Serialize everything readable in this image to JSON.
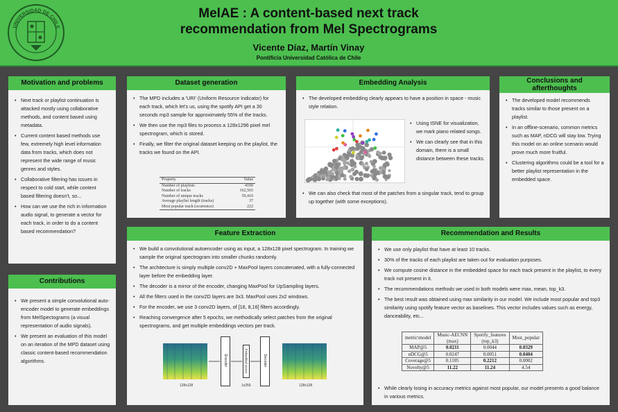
{
  "header": {
    "title_line1": "MelAE : A content-based next track",
    "title_line2": "recommendation from Mel Spectrograms",
    "authors": "Vicente Díaz, Martín Vinay",
    "affiliation": "Pontificia Universidad Católica de Chile",
    "logo_text": "UNIVERSIDAD DE CHILE"
  },
  "motivation": {
    "title": "Motivation and problems",
    "items": [
      " Next track or playlist continuation is attacked mostly using collaborative methods, and content based using metadata.",
      "Current content based methods use few,  extremely high level information data from tracks, which does not represent the wide range of music genres and styles.",
      "Collaborative filtering has issues in respect to cold start, while content based filtering doesn't, so...",
      "How can we use the rich in information audio signal, to generate a vector for each track, in order to do a content based recommendation?"
    ]
  },
  "contributions": {
    "title": "Contributions",
    "items": [
      "We present a simple convolutional auto-encoder model to generate embeddings from MelSpectograms (a visual representation of audio signals).",
      "We present an evaluation of this model on an iteration of the MPD dataset using classic content-based recommendation algorithms."
    ]
  },
  "dataset": {
    "title": "Dataset generation",
    "items": [
      "The MPD includes a 'URI' (Uniform Resource Indicator) for each track, which let's us, using the spotify API get a 30 seconds mp3 sample for approximately 55% of the tracks.",
      "We then use the mp3 files to process a 128x1296 pixel mel spectrogram, which is stored.",
      "Finally, we filter the original dataset keeping on the playlist, the tracks we found on the API."
    ],
    "table": {
      "headers": [
        "Property",
        "Value"
      ],
      "rows": [
        [
          "Number of playlists",
          "4100"
        ],
        [
          "Number of tracks",
          "162,565"
        ],
        [
          "Number of unique tracks",
          "59,410"
        ],
        [
          "Average playlist length (tracks)",
          "37"
        ],
        [
          "Most popular track (ocurrence)",
          "222"
        ]
      ]
    }
  },
  "embedding": {
    "title": "Embedding Analysis",
    "intro": "The developed embedding clearly appears to have a position in space - music style relation.",
    "side_items": [
      "Using tSNE for visualization, we mark piano related songs.",
      "We can clearly see that in this domain, there is a small distance between these tracks."
    ],
    "bottom": "We can also check that most of the patches from a singular track, tend to group up together (with some exceptions)."
  },
  "conclusions": {
    "title_line1": "Conclusions and",
    "title_line2": "afterthoughts",
    "items": [
      "The developed model recommends tracks similar to those present on a playlist.",
      "In an offline-scenario, common metrics such as MAP, nDCG will stay low. Trying this model on an online scenario would prove much more fruitful.",
      "Clustering algorithms could be a tool for a better playlist representation in the embedded space."
    ]
  },
  "feature": {
    "title": "Feature Extraction",
    "items": [
      "We build a convolutional autoencoder using as input, a 128x128 pixel spectrogram. In training we sample the original spectrogram into smaller chunks randomly.",
      "The architecture is simply multiple conv2D + MaxPool layers concatenated, with a fully-connected layer before the embedding layer.",
      "The decoder is a mirror of the encoder, changing MaxPool for UpSampling layers.",
      "All the filters used in the conv2D layers are 3x3. MaxPool uses 2x2 windows.",
      "For the encoder, we use 3 conv2D layers, of [16, 8,16] filters accordingly.",
      "Reaching convergence after 5 epochs, we methodically select patches from the original spectrograms, and get multiple embeddings vectors per track."
    ],
    "diagram": {
      "input_label": "128x128",
      "encoder": "Encoder",
      "embedded": "Embedded Vector",
      "embedded_dim": "1x256",
      "decoder": "Decoder",
      "output_label": "128x128"
    }
  },
  "results": {
    "title": "Recommendation and Results",
    "items": [
      "We use only playlist that have at least 10 tracks.",
      "30% of the tracks of each playlist are taken out for evaluation purposes.",
      "We compute cosine distance in the embedded space for each track present in the playlist, to every track not present in it.",
      "The recommendations methods we used in both models were max, mean, top_k3.",
      "The best result was obtained using max similarity in our model. We include most popular and top3 similarity using spotify feature vector as baselines. This vector includes values such as energy, danceability, etc..."
    ],
    "table": {
      "h0": "metric\\model",
      "h1a": "Music-AECNN",
      "h1b": "(max)",
      "h2a": "Spotify_features",
      "h2b": "(top_k3)",
      "h3": "Most_popular",
      "rows": [
        [
          "MAP@5",
          "0.0211",
          "0.0044",
          "0.0329"
        ],
        [
          "nDCG@5",
          "0.0247",
          "0.0051",
          "0.0404"
        ],
        [
          "Coverage@5",
          "0.1105",
          "0.2212",
          "0.0002"
        ],
        [
          "Novelty@5",
          "11.22",
          "11.24",
          "4.54"
        ]
      ]
    },
    "bottom": "While clearly losing in accuracy metrics against most popular, our model presents a good balance in various metrics."
  },
  "colors": {
    "accent": "#4cbf4f",
    "background": "#454545",
    "panel": "#f2f2f2"
  }
}
